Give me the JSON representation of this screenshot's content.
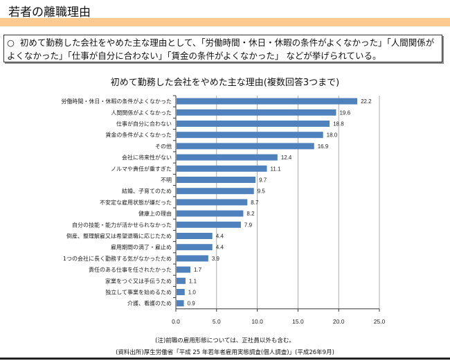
{
  "header": {
    "title": "若者の離職理由"
  },
  "summary": {
    "bullet": "○",
    "text": "初めて勤務した会社をやめた主な理由として、「労働時間・休日・休暇の条件がよくなかった」「人間関係がよくなかった」「仕事が自分に合わない」「賃金の条件がよくなかった」 などが挙げられている。"
  },
  "chart_data": {
    "type": "bar",
    "orientation": "horizontal",
    "title": "初めて勤務した会社をやめた主な理由(複数回答3つまで)",
    "categories": [
      "労働時間・休日・休暇の条件がよくなかった",
      "人間関係がよくなかった",
      "仕事が自分に合わない",
      "賃金の条件がよくなかった",
      "その他",
      "会社に将来性がない",
      "ノルマや責任が重すぎた",
      "不明",
      "結婚、子育てのため",
      "不安定な雇用状態が嫌だった",
      "健康上の理由",
      "自分の技能・能力が活かせられなかった",
      "倒産、整理解雇又は希望退職に応じたため",
      "雇用期間の満了・雇止め",
      "1つの会社に長く勤務する気がなかったため",
      "責任のある仕事を任されたかった",
      "家業をつぐ又は手伝うため",
      "独立して事業を始めるため",
      "介護、看護のため"
    ],
    "values": [
      22.2,
      19.6,
      18.8,
      18.0,
      16.9,
      12.4,
      11.1,
      9.7,
      9.5,
      8.7,
      8.2,
      7.9,
      4.4,
      4.4,
      3.9,
      1.7,
      1.1,
      1.0,
      0.9
    ],
    "value_labels": [
      "22.2",
      "19.6",
      "18.8",
      "18.0",
      "16.9",
      "12.4",
      "11.1",
      "9.7",
      "9.5",
      "8.7",
      "8.2",
      "7.9",
      "4.4",
      "4.4",
      "3.9",
      "1.7",
      "1.1",
      "1.0",
      "0.9"
    ],
    "xlim": [
      0,
      25
    ],
    "xticks": [
      "0.0",
      "5.0",
      "10.0",
      "15.0",
      "20.0",
      "25.0"
    ],
    "grid": true,
    "bar_color": "#4f81bd"
  },
  "notes": {
    "note": "(注)前職の雇用形態については、正社員以外も含む。",
    "source": "(資料出所)厚生労働省「平成 25 年若年者雇用実態調査(個人調査)」(平成26年9月)"
  }
}
